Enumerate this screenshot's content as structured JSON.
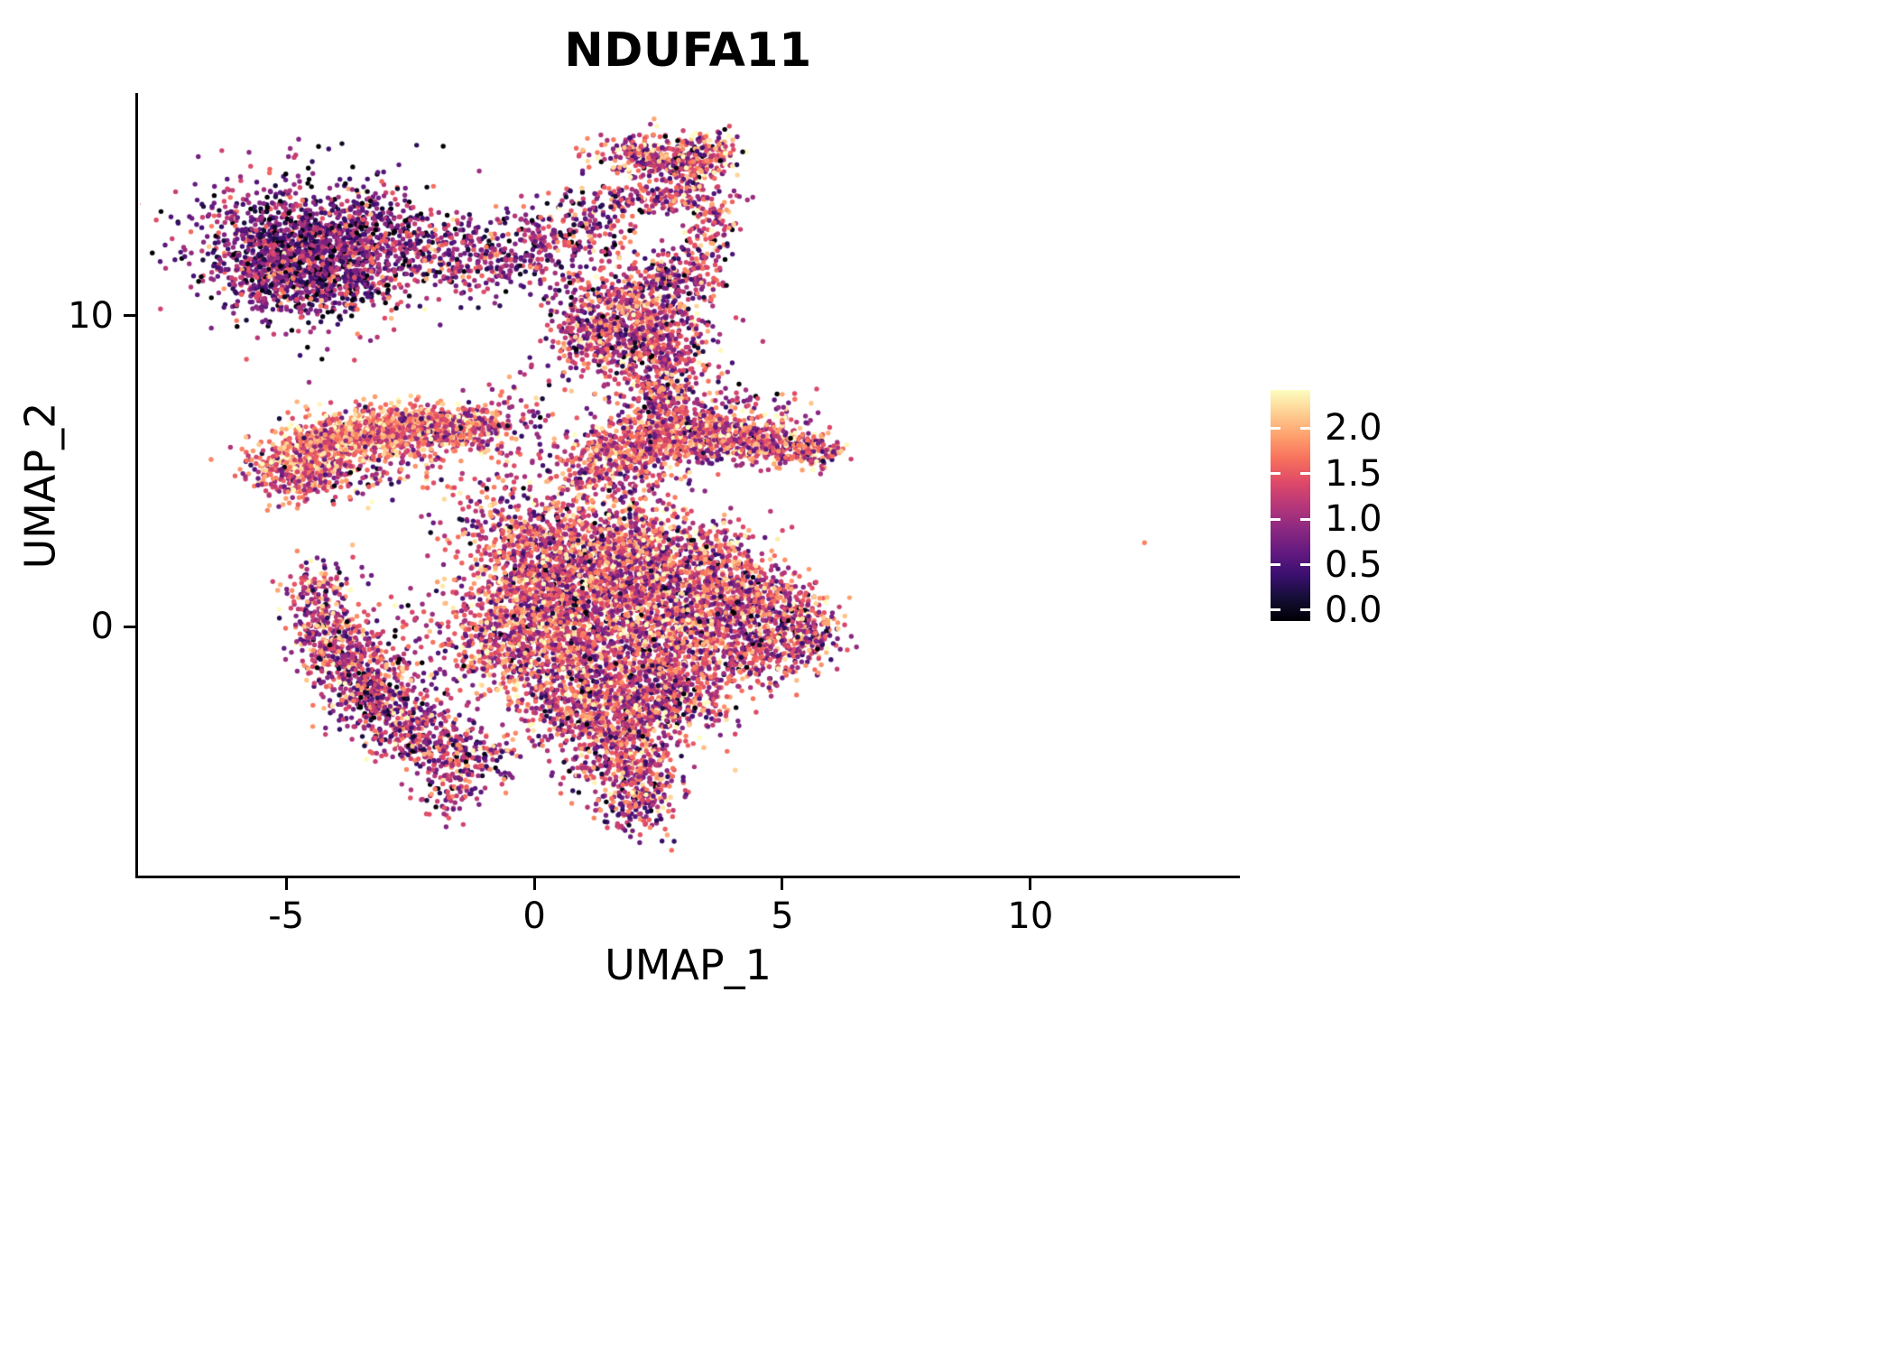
{
  "page": {
    "background": "#ffffff"
  },
  "chart_data": {
    "type": "scatter",
    "title": "NDUFA11",
    "xlabel": "UMAP_1",
    "ylabel": "UMAP_2",
    "xlim": [
      -7.95,
      14.15
    ],
    "ylim": [
      -8.0,
      17.1
    ],
    "x_ticks": [
      -5,
      0,
      5,
      10
    ],
    "x_tick_labels": [
      "-5",
      "0",
      "5",
      "10"
    ],
    "y_ticks": [
      0,
      10
    ],
    "y_tick_labels": [
      "0",
      "10"
    ],
    "grid": false,
    "legend_position": "right",
    "point_radius_px": 2.7,
    "seed": 20240613,
    "colorbar": {
      "tick_values": [
        0.0,
        0.5,
        1.0,
        1.5,
        2.0
      ],
      "tick_labels": [
        "0.0",
        "0.5",
        "1.0",
        "1.5",
        "2.0"
      ],
      "vmin": 0.0,
      "vmax": 2.3,
      "bar_range": [
        -0.12,
        2.42
      ],
      "palette_name": "magma",
      "stops": [
        "#000004",
        "#140e36",
        "#3b0f70",
        "#641a80",
        "#8c2981",
        "#b73779",
        "#de4968",
        "#f7705c",
        "#fe9f6d",
        "#fecf92",
        "#fcfdbf"
      ]
    },
    "clusters": [
      {
        "cx": -4.8,
        "cy": 12.4,
        "sx": 0.95,
        "sy": 0.95,
        "n": 850,
        "mean": 0.8,
        "sd": 0.5
      },
      {
        "cx": -4.0,
        "cy": 11.4,
        "sx": 0.8,
        "sy": 0.75,
        "n": 500,
        "mean": 0.8,
        "sd": 0.5
      },
      {
        "cx": -5.3,
        "cy": 11.2,
        "sx": 0.55,
        "sy": 0.7,
        "n": 220,
        "mean": 0.75,
        "sd": 0.5
      },
      {
        "cx": -4.6,
        "cy": 12.1,
        "sx": 1.6,
        "sy": 1.5,
        "n": 220,
        "mean": 0.8,
        "sd": 0.5
      },
      {
        "cx": -3.2,
        "cy": 13.0,
        "sx": 0.6,
        "sy": 0.6,
        "n": 150,
        "mean": 0.85,
        "sd": 0.5
      },
      {
        "cx": -2.3,
        "cy": 12.2,
        "sx": 0.7,
        "sy": 0.65,
        "n": 170,
        "mean": 0.85,
        "sd": 0.5
      },
      {
        "cx": -1.3,
        "cy": 11.8,
        "sx": 0.6,
        "sy": 0.6,
        "n": 140,
        "mean": 0.9,
        "sd": 0.5
      },
      {
        "cx": -0.3,
        "cy": 11.9,
        "sx": 0.55,
        "sy": 0.65,
        "n": 130,
        "mean": 0.9,
        "sd": 0.5
      },
      {
        "cx": 0.5,
        "cy": 12.4,
        "sx": 0.5,
        "sy": 0.8,
        "n": 120,
        "mean": 0.95,
        "sd": 0.5
      },
      {
        "cx": 1.1,
        "cy": 12.9,
        "sx": 0.4,
        "sy": 0.6,
        "n": 80,
        "mean": 1.0,
        "sd": 0.55
      },
      {
        "cx": 2.2,
        "cy": 15.2,
        "sx": 0.5,
        "sy": 0.35,
        "n": 220,
        "mean": 1.3,
        "sd": 0.6
      },
      {
        "cx": 3.1,
        "cy": 14.9,
        "sx": 0.45,
        "sy": 0.3,
        "n": 170,
        "mean": 1.3,
        "sd": 0.6
      },
      {
        "cx": 2.9,
        "cy": 13.9,
        "sx": 0.55,
        "sy": 0.3,
        "n": 140,
        "mean": 1.25,
        "sd": 0.55
      },
      {
        "cx": 1.7,
        "cy": 13.6,
        "sx": 0.4,
        "sy": 0.45,
        "n": 80,
        "mean": 1.1,
        "sd": 0.55
      },
      {
        "cx": 3.6,
        "cy": 15.4,
        "sx": 0.3,
        "sy": 0.25,
        "n": 70,
        "mean": 1.4,
        "sd": 0.6
      },
      {
        "cx": 1.9,
        "cy": 10.0,
        "sx": 0.7,
        "sy": 0.85,
        "n": 480,
        "mean": 1.2,
        "sd": 0.55
      },
      {
        "cx": 2.5,
        "cy": 9.2,
        "sx": 0.6,
        "sy": 0.6,
        "n": 300,
        "mean": 1.2,
        "sd": 0.55
      },
      {
        "cx": 1.5,
        "cy": 9.0,
        "sx": 0.5,
        "sy": 0.5,
        "n": 180,
        "mean": 1.15,
        "sd": 0.55
      },
      {
        "cx": 2.8,
        "cy": 11.1,
        "sx": 0.45,
        "sy": 0.5,
        "n": 130,
        "mean": 1.1,
        "sd": 0.55
      },
      {
        "cx": 2.6,
        "cy": 8.0,
        "sx": 0.35,
        "sy": 0.55,
        "n": 120,
        "mean": 1.2,
        "sd": 0.5
      },
      {
        "cx": 3.3,
        "cy": 11.9,
        "sx": 0.3,
        "sy": 0.55,
        "n": 90,
        "mean": 1.1,
        "sd": 0.55
      },
      {
        "cx": 3.6,
        "cy": 13.0,
        "sx": 0.25,
        "sy": 0.5,
        "n": 70,
        "mean": 1.2,
        "sd": 0.55
      },
      {
        "cx": 0.9,
        "cy": 9.7,
        "sx": 0.45,
        "sy": 0.8,
        "n": 90,
        "mean": 1.05,
        "sd": 0.55
      },
      {
        "cx": 2.5,
        "cy": 7.3,
        "sx": 0.35,
        "sy": 0.4,
        "n": 70,
        "mean": 1.2,
        "sd": 0.5
      },
      {
        "cx": -4.9,
        "cy": 5.0,
        "sx": 0.45,
        "sy": 0.5,
        "n": 240,
        "mean": 1.5,
        "sd": 0.5
      },
      {
        "cx": -4.3,
        "cy": 5.7,
        "sx": 0.5,
        "sy": 0.45,
        "n": 300,
        "mean": 1.6,
        "sd": 0.45
      },
      {
        "cx": -3.6,
        "cy": 6.1,
        "sx": 0.5,
        "sy": 0.4,
        "n": 300,
        "mean": 1.6,
        "sd": 0.45
      },
      {
        "cx": -2.8,
        "cy": 6.4,
        "sx": 0.5,
        "sy": 0.36,
        "n": 280,
        "mean": 1.6,
        "sd": 0.45
      },
      {
        "cx": -2.0,
        "cy": 6.5,
        "sx": 0.5,
        "sy": 0.34,
        "n": 240,
        "mean": 1.55,
        "sd": 0.48
      },
      {
        "cx": -1.3,
        "cy": 6.4,
        "sx": 0.4,
        "sy": 0.32,
        "n": 170,
        "mean": 1.5,
        "sd": 0.5
      },
      {
        "cx": -3.9,
        "cy": 4.9,
        "sx": 0.9,
        "sy": 0.45,
        "n": 150,
        "mean": 1.35,
        "sd": 0.55
      },
      {
        "cx": -2.5,
        "cy": 5.8,
        "sx": 0.9,
        "sy": 0.4,
        "n": 120,
        "mean": 1.5,
        "sd": 0.5
      },
      {
        "cx": -0.9,
        "cy": 3.6,
        "sx": 0.6,
        "sy": 0.8,
        "n": 110,
        "mean": 1.25,
        "sd": 0.55
      },
      {
        "cx": -0.2,
        "cy": 6.5,
        "sx": 0.5,
        "sy": 0.9,
        "n": 90,
        "mean": 1.15,
        "sd": 0.55
      },
      {
        "cx": 1.3,
        "cy": 5.3,
        "sx": 0.5,
        "sy": 0.5,
        "n": 200,
        "mean": 1.3,
        "sd": 0.5
      },
      {
        "cx": 2.2,
        "cy": 5.9,
        "sx": 0.6,
        "sy": 0.5,
        "n": 300,
        "mean": 1.35,
        "sd": 0.5
      },
      {
        "cx": 3.1,
        "cy": 6.2,
        "sx": 0.6,
        "sy": 0.42,
        "n": 280,
        "mean": 1.35,
        "sd": 0.5
      },
      {
        "cx": 4.0,
        "cy": 6.1,
        "sx": 0.55,
        "sy": 0.4,
        "n": 250,
        "mean": 1.4,
        "sd": 0.5
      },
      {
        "cx": 4.9,
        "cy": 5.9,
        "sx": 0.45,
        "sy": 0.35,
        "n": 190,
        "mean": 1.4,
        "sd": 0.5
      },
      {
        "cx": 5.6,
        "cy": 5.7,
        "sx": 0.3,
        "sy": 0.3,
        "n": 100,
        "mean": 1.35,
        "sd": 0.5
      },
      {
        "cx": 3.4,
        "cy": 7.0,
        "sx": 1.1,
        "sy": 0.4,
        "n": 120,
        "mean": 1.15,
        "sd": 0.55
      },
      {
        "cx": 1.7,
        "cy": 4.6,
        "sx": 0.8,
        "sy": 0.4,
        "n": 110,
        "mean": 1.3,
        "sd": 0.5
      },
      {
        "cx": 0.2,
        "cy": 2.1,
        "sx": 0.8,
        "sy": 0.75,
        "n": 480,
        "mean": 1.35,
        "sd": 0.55
      },
      {
        "cx": 1.5,
        "cy": 2.5,
        "sx": 0.9,
        "sy": 0.75,
        "n": 520,
        "mean": 1.35,
        "sd": 0.55
      },
      {
        "cx": 2.8,
        "cy": 2.3,
        "sx": 0.8,
        "sy": 0.7,
        "n": 430,
        "mean": 1.3,
        "sd": 0.55
      },
      {
        "cx": 3.8,
        "cy": 1.4,
        "sx": 0.55,
        "sy": 0.7,
        "n": 280,
        "mean": 1.3,
        "sd": 0.55
      },
      {
        "cx": 0.0,
        "cy": 0.6,
        "sx": 0.8,
        "sy": 0.8,
        "n": 480,
        "mean": 1.4,
        "sd": 0.55
      },
      {
        "cx": 1.3,
        "cy": 0.8,
        "sx": 0.9,
        "sy": 0.9,
        "n": 560,
        "mean": 1.35,
        "sd": 0.55
      },
      {
        "cx": 2.6,
        "cy": 0.5,
        "sx": 0.8,
        "sy": 0.8,
        "n": 470,
        "mean": 1.3,
        "sd": 0.55
      },
      {
        "cx": 3.8,
        "cy": -0.3,
        "sx": 0.55,
        "sy": 0.75,
        "n": 280,
        "mean": 1.25,
        "sd": 0.55
      },
      {
        "cx": -0.6,
        "cy": -0.6,
        "sx": 0.6,
        "sy": 0.7,
        "n": 300,
        "mean": 1.35,
        "sd": 0.55
      },
      {
        "cx": 0.6,
        "cy": -1.2,
        "sx": 0.8,
        "sy": 0.8,
        "n": 470,
        "mean": 1.4,
        "sd": 0.55
      },
      {
        "cx": 1.9,
        "cy": -1.5,
        "sx": 0.8,
        "sy": 0.75,
        "n": 460,
        "mean": 1.3,
        "sd": 0.55
      },
      {
        "cx": 3.0,
        "cy": -2.0,
        "sx": 0.65,
        "sy": 0.65,
        "n": 330,
        "mean": 1.25,
        "sd": 0.55
      },
      {
        "cx": 0.8,
        "cy": -2.8,
        "sx": 0.65,
        "sy": 0.6,
        "n": 280,
        "mean": 1.3,
        "sd": 0.55
      },
      {
        "cx": 2.0,
        "cy": -3.2,
        "sx": 0.65,
        "sy": 0.6,
        "n": 280,
        "mean": 1.25,
        "sd": 0.55
      },
      {
        "cx": 1.6,
        "cy": -4.3,
        "sx": 0.55,
        "sy": 0.55,
        "n": 230,
        "mean": 1.25,
        "sd": 0.55
      },
      {
        "cx": 2.2,
        "cy": -5.2,
        "sx": 0.45,
        "sy": 0.55,
        "n": 160,
        "mean": 1.2,
        "sd": 0.55
      },
      {
        "cx": 2.0,
        "cy": -6.0,
        "sx": 0.4,
        "sy": 0.5,
        "n": 90,
        "mean": 1.2,
        "sd": 0.55
      },
      {
        "cx": 0.6,
        "cy": 3.5,
        "sx": 1.1,
        "sy": 0.45,
        "n": 150,
        "mean": 1.25,
        "sd": 0.55
      },
      {
        "cx": -4.2,
        "cy": 0.1,
        "sx": 0.4,
        "sy": 0.6,
        "n": 190,
        "mean": 1.2,
        "sd": 0.55
      },
      {
        "cx": -3.9,
        "cy": -1.0,
        "sx": 0.4,
        "sy": 0.6,
        "n": 210,
        "mean": 1.15,
        "sd": 0.55
      },
      {
        "cx": -3.4,
        "cy": -2.0,
        "sx": 0.45,
        "sy": 0.55,
        "n": 210,
        "mean": 1.1,
        "sd": 0.55
      },
      {
        "cx": -2.8,
        "cy": -2.9,
        "sx": 0.5,
        "sy": 0.5,
        "n": 210,
        "mean": 1.1,
        "sd": 0.55
      },
      {
        "cx": -2.0,
        "cy": -3.7,
        "sx": 0.5,
        "sy": 0.5,
        "n": 190,
        "mean": 1.1,
        "sd": 0.55
      },
      {
        "cx": -1.2,
        "cy": -4.3,
        "sx": 0.45,
        "sy": 0.5,
        "n": 150,
        "mean": 1.1,
        "sd": 0.55
      },
      {
        "cx": -2.7,
        "cy": -0.9,
        "sx": 0.8,
        "sy": 0.9,
        "n": 170,
        "mean": 1.15,
        "sd": 0.55
      },
      {
        "cx": -4.3,
        "cy": 1.2,
        "sx": 0.4,
        "sy": 0.5,
        "n": 100,
        "mean": 1.25,
        "sd": 0.55
      },
      {
        "cx": -1.7,
        "cy": -5.4,
        "sx": 0.35,
        "sy": 0.4,
        "n": 60,
        "mean": 1.05,
        "sd": 0.5
      },
      {
        "cx": 5.1,
        "cy": 0.4,
        "sx": 0.5,
        "sy": 0.65,
        "n": 240,
        "mean": 1.3,
        "sd": 0.55
      },
      {
        "cx": 4.8,
        "cy": -0.9,
        "sx": 0.5,
        "sy": 0.5,
        "n": 170,
        "mean": 1.25,
        "sd": 0.55
      },
      {
        "cx": 5.6,
        "cy": -0.3,
        "sx": 0.3,
        "sy": 0.5,
        "n": 100,
        "mean": 1.25,
        "sd": 0.55
      },
      {
        "cx": 4.4,
        "cy": 0.9,
        "sx": 0.4,
        "sy": 0.55,
        "n": 120,
        "mean": 1.3,
        "sd": 0.55
      },
      {
        "cx": 0.5,
        "cy": 13.6,
        "sx": 0.4,
        "sy": 0.4,
        "n": 10,
        "mean": 0.9,
        "sd": 0.5
      }
    ],
    "outliers": [
      {
        "x": 12.3,
        "y": 2.7,
        "value": 1.7
      }
    ]
  }
}
